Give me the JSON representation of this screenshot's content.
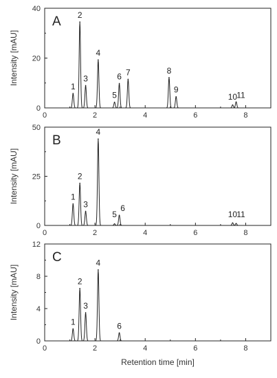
{
  "chart_data": [
    {
      "type": "line",
      "panel_label": "A",
      "xlabel": "",
      "ylabel": "Intensity [mAU]",
      "xlim": [
        0,
        9
      ],
      "ylim": [
        0,
        40
      ],
      "x_ticks": [
        0,
        2,
        4,
        6,
        8
      ],
      "y_ticks": [
        0,
        20,
        40
      ],
      "peaks": [
        {
          "label": "1",
          "rt": 1.13,
          "height": 5.8
        },
        {
          "label": "2",
          "rt": 1.4,
          "height": 34.5
        },
        {
          "label": "3",
          "rt": 1.63,
          "height": 9.0
        },
        {
          "label": "4",
          "rt": 2.13,
          "height": 19.3
        },
        {
          "label": "5",
          "rt": 2.78,
          "height": 2.3
        },
        {
          "label": "6",
          "rt": 2.97,
          "height": 9.8
        },
        {
          "label": "7",
          "rt": 3.32,
          "height": 11.5
        },
        {
          "label": "8",
          "rt": 4.95,
          "height": 12.2
        },
        {
          "label": "9",
          "rt": 5.23,
          "height": 4.5
        },
        {
          "label": "10",
          "rt": 7.48,
          "height": 1.2
        },
        {
          "label": "11",
          "rt": 7.62,
          "height": 2.4
        }
      ]
    },
    {
      "type": "line",
      "panel_label": "B",
      "xlabel": "",
      "ylabel": "Intensity [mAU]",
      "xlim": [
        0,
        9
      ],
      "ylim": [
        0,
        50
      ],
      "x_ticks": [
        0,
        2,
        4,
        6,
        8
      ],
      "y_ticks": [
        0,
        25,
        50
      ],
      "peaks": [
        {
          "label": "1",
          "rt": 1.13,
          "height": 11.0
        },
        {
          "label": "2",
          "rt": 1.4,
          "height": 21.5
        },
        {
          "label": "3",
          "rt": 1.63,
          "height": 7.2
        },
        {
          "label": "4",
          "rt": 2.13,
          "height": 44.0
        },
        {
          "label": "5",
          "rt": 2.78,
          "height": 0.8
        },
        {
          "label": "6",
          "rt": 2.97,
          "height": 5.2
        },
        {
          "label": "10",
          "rt": 7.48,
          "height": 1.3
        },
        {
          "label": "11",
          "rt": 7.62,
          "height": 1.0
        }
      ]
    },
    {
      "type": "line",
      "panel_label": "C",
      "xlabel": "Retention  time [min]",
      "ylabel": "Intensity [mAU]",
      "xlim": [
        0,
        9
      ],
      "ylim": [
        0,
        12
      ],
      "x_ticks": [
        0,
        2,
        4,
        6,
        8
      ],
      "y_ticks": [
        0,
        4,
        8,
        12
      ],
      "peaks": [
        {
          "label": "1",
          "rt": 1.13,
          "height": 1.5
        },
        {
          "label": "2",
          "rt": 1.4,
          "height": 6.5
        },
        {
          "label": "3",
          "rt": 1.63,
          "height": 3.5
        },
        {
          "label": "4",
          "rt": 2.13,
          "height": 8.8
        },
        {
          "label": "6",
          "rt": 2.97,
          "height": 1.0
        }
      ]
    }
  ]
}
